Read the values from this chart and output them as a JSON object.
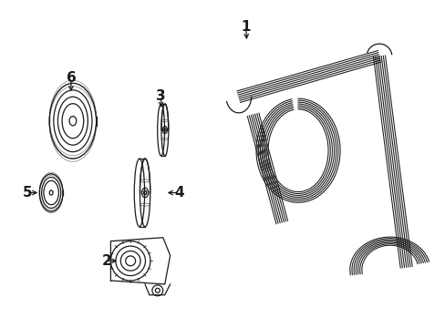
{
  "background_color": "#ffffff",
  "line_color": "#1a1a1a",
  "line_width": 0.9,
  "fig_width": 4.89,
  "fig_height": 3.6,
  "dpi": 100
}
